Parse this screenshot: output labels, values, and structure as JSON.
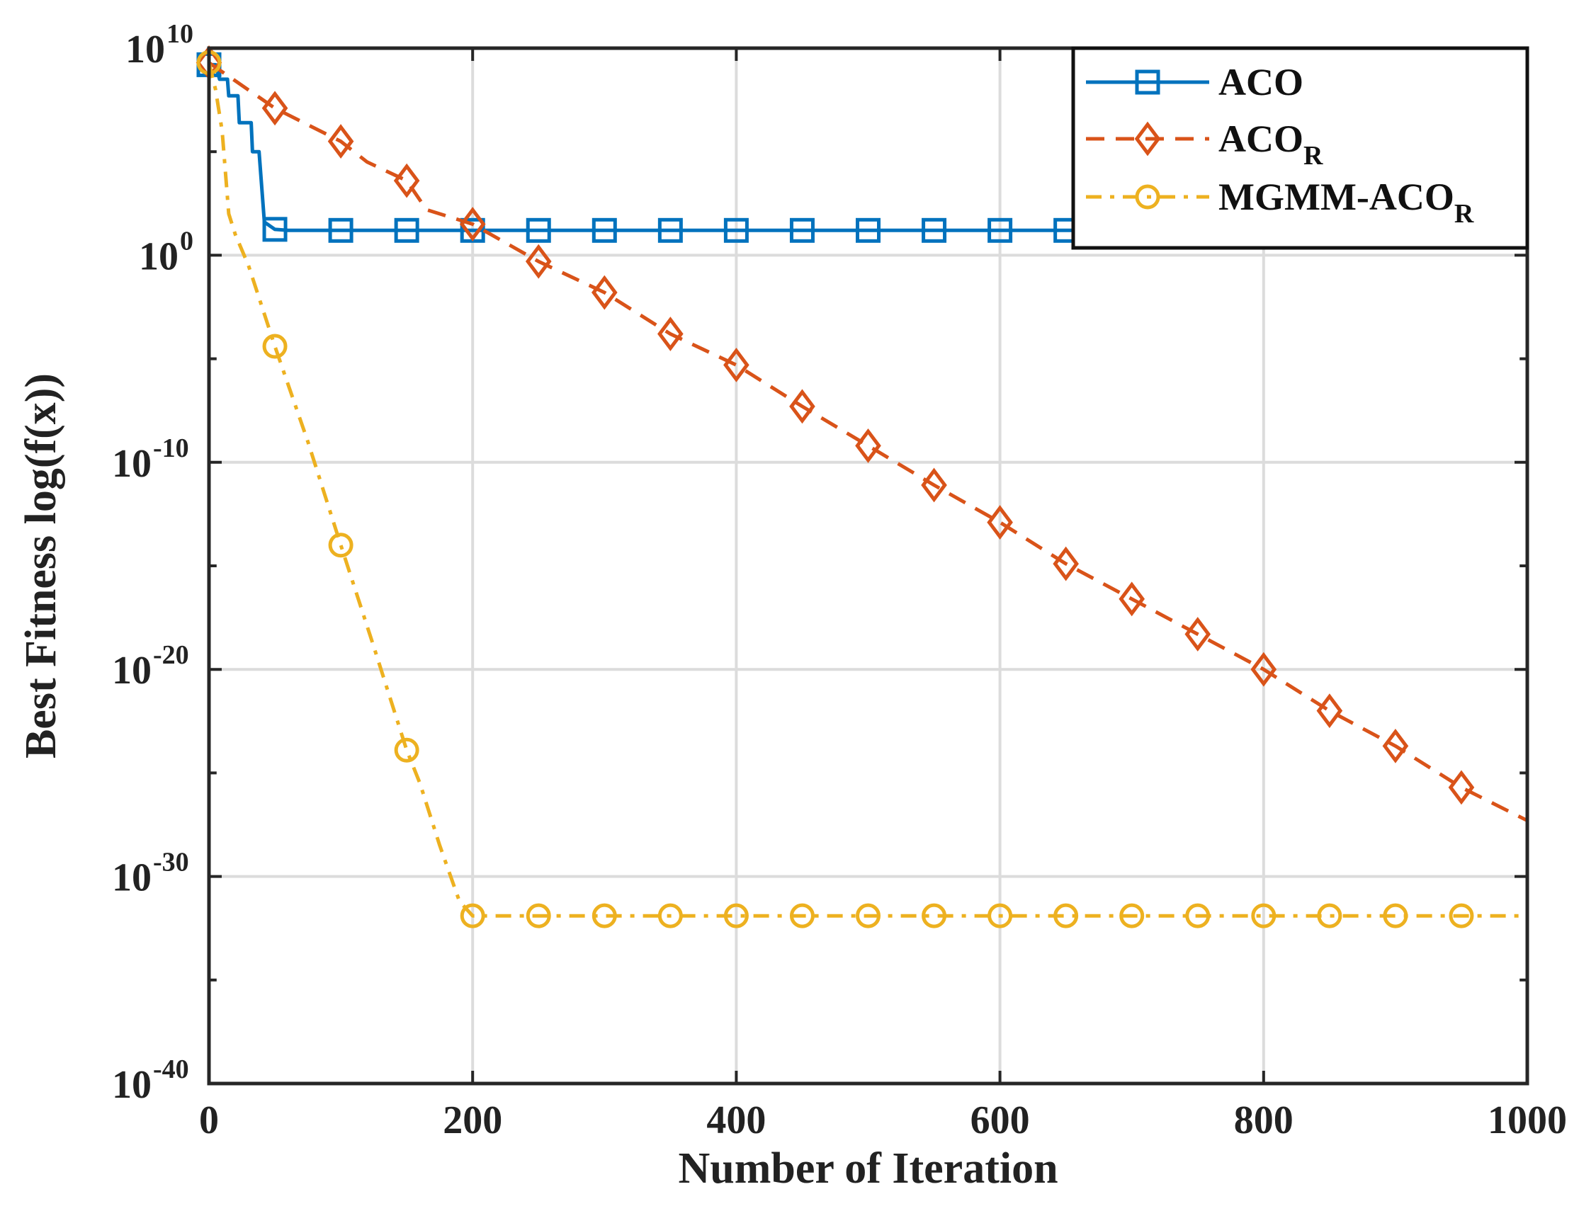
{
  "chart_data": {
    "type": "line",
    "title": "",
    "xlabel": "Number of Iteration",
    "ylabel": "Best Fitness log(f(x))",
    "xlim": [
      0,
      1000
    ],
    "ylim_log10": [
      -40,
      10
    ],
    "yscale": "log",
    "grid": true,
    "legend_position": "top-right",
    "x_ticks": [
      0,
      200,
      400,
      600,
      800,
      1000
    ],
    "x_tick_labels": [
      "0",
      "200",
      "400",
      "600",
      "800",
      "1000"
    ],
    "y_tick_exponents": [
      10,
      0,
      -10,
      -20,
      -30,
      -40
    ],
    "y_tick_base": "10",
    "y_tick_sup": [
      "10",
      "0",
      "-10",
      "-20",
      "-30",
      "-40"
    ],
    "series": [
      {
        "name": "ACO",
        "name_main": "ACO",
        "name_sub": "",
        "color": "#0072BD",
        "line_style": "solid",
        "marker": "square",
        "points": [
          [
            0,
            9.2
          ],
          [
            5,
            9.2
          ],
          [
            8,
            8.5
          ],
          [
            14,
            8.5
          ],
          [
            15,
            7.7
          ],
          [
            22,
            7.7
          ],
          [
            23,
            6.4
          ],
          [
            32,
            6.4
          ],
          [
            33,
            5.0
          ],
          [
            38,
            5.0
          ],
          [
            42,
            1.6
          ],
          [
            50,
            1.25
          ],
          [
            60,
            1.2
          ],
          [
            1000,
            1.2
          ]
        ],
        "marker_points": [
          [
            0,
            9.2
          ],
          [
            50,
            1.25
          ],
          [
            100,
            1.2
          ],
          [
            150,
            1.2
          ],
          [
            200,
            1.2
          ],
          [
            250,
            1.2
          ],
          [
            300,
            1.2
          ],
          [
            350,
            1.2
          ],
          [
            400,
            1.2
          ],
          [
            450,
            1.2
          ],
          [
            500,
            1.2
          ],
          [
            550,
            1.2
          ],
          [
            600,
            1.2
          ],
          [
            650,
            1.2
          ]
        ]
      },
      {
        "name": "ACOR",
        "name_main": "ACO",
        "name_sub": "R",
        "color": "#D95319",
        "line_style": "dashed",
        "marker": "diamond",
        "points": [
          [
            0,
            9.3
          ],
          [
            50,
            7.1
          ],
          [
            100,
            5.5
          ],
          [
            120,
            4.5
          ],
          [
            150,
            3.6
          ],
          [
            165,
            2.2
          ],
          [
            200,
            1.5
          ],
          [
            250,
            -0.3
          ],
          [
            300,
            -1.8
          ],
          [
            350,
            -3.8
          ],
          [
            400,
            -5.3
          ],
          [
            450,
            -7.3
          ],
          [
            500,
            -9.2
          ],
          [
            550,
            -11.1
          ],
          [
            600,
            -12.9
          ],
          [
            650,
            -14.9
          ],
          [
            700,
            -16.6
          ],
          [
            750,
            -18.3
          ],
          [
            800,
            -20.0
          ],
          [
            850,
            -22.0
          ],
          [
            900,
            -23.7
          ],
          [
            950,
            -25.7
          ],
          [
            1000,
            -27.3
          ]
        ],
        "marker_points": [
          [
            0,
            9.3
          ],
          [
            50,
            7.1
          ],
          [
            100,
            5.5
          ],
          [
            150,
            3.6
          ],
          [
            200,
            1.5
          ],
          [
            250,
            -0.3
          ],
          [
            300,
            -1.8
          ],
          [
            350,
            -3.8
          ],
          [
            400,
            -5.3
          ],
          [
            450,
            -7.3
          ],
          [
            500,
            -9.2
          ],
          [
            550,
            -11.1
          ],
          [
            600,
            -12.9
          ],
          [
            650,
            -14.9
          ],
          [
            700,
            -16.6
          ],
          [
            750,
            -18.3
          ],
          [
            800,
            -20.0
          ],
          [
            850,
            -22.0
          ],
          [
            900,
            -23.7
          ],
          [
            950,
            -25.7
          ]
        ]
      },
      {
        "name": "MGMM-ACOR",
        "name_main": "MGMM-ACO",
        "name_sub": "R",
        "color": "#EDB120",
        "line_style": "dashdot",
        "marker": "circle",
        "points": [
          [
            0,
            9.3
          ],
          [
            5,
            8.0
          ],
          [
            10,
            6.0
          ],
          [
            15,
            2.0
          ],
          [
            20,
            1.0
          ],
          [
            30,
            -0.5
          ],
          [
            50,
            -4.4
          ],
          [
            75,
            -9.0
          ],
          [
            100,
            -14.0
          ],
          [
            125,
            -18.9
          ],
          [
            150,
            -23.9
          ],
          [
            160,
            -25.5
          ],
          [
            175,
            -28.5
          ],
          [
            190,
            -31.2
          ],
          [
            200,
            -31.9
          ],
          [
            1000,
            -31.9
          ]
        ],
        "marker_points": [
          [
            0,
            9.3
          ],
          [
            50,
            -4.4
          ],
          [
            100,
            -14.0
          ],
          [
            150,
            -23.9
          ],
          [
            200,
            -31.9
          ],
          [
            250,
            -31.9
          ],
          [
            300,
            -31.9
          ],
          [
            350,
            -31.9
          ],
          [
            400,
            -31.9
          ],
          [
            450,
            -31.9
          ],
          [
            500,
            -31.9
          ],
          [
            550,
            -31.9
          ],
          [
            600,
            -31.9
          ],
          [
            650,
            -31.9
          ],
          [
            700,
            -31.9
          ],
          [
            750,
            -31.9
          ],
          [
            800,
            -31.9
          ],
          [
            850,
            -31.9
          ],
          [
            900,
            -31.9
          ],
          [
            950,
            -31.9
          ]
        ]
      }
    ]
  }
}
